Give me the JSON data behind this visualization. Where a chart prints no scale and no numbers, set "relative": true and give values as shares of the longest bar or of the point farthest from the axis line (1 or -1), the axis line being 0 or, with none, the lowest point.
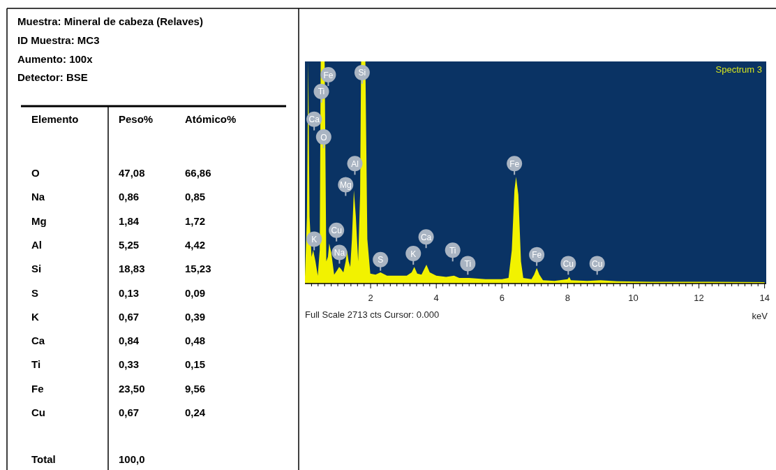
{
  "chart_data": [
    {
      "type": "other",
      "title": "Muestra: Mineral de cabeza (Relaves)",
      "xlabel": "Elemento",
      "annotations": [
        "ID Muestra: MC3",
        "Aumento: 100x",
        "Detector: BSE",
        "Total",
        "100,0"
      ],
      "categories": [
        "O",
        "Na",
        "Mg",
        "Al",
        "Si",
        "S",
        "K",
        "Ca",
        "Ti",
        "Fe",
        "Cu"
      ],
      "series": [
        {
          "name": "Peso%",
          "values": [
            47.08,
            0.86,
            1.84,
            5.25,
            18.83,
            0.13,
            0.67,
            0.84,
            0.33,
            23.5,
            0.67
          ],
          "value_labels": [
            "47,08",
            "0,86",
            "1,84",
            "5,25",
            "18,83",
            "0,13",
            "0,67",
            "0,84",
            "0,33",
            "23,50",
            "0,67"
          ]
        },
        {
          "name": "Atómico%",
          "values": [
            66.86,
            0.85,
            1.72,
            4.42,
            15.23,
            0.09,
            0.39,
            0.48,
            0.15,
            9.56,
            0.24
          ],
          "value_labels": [
            "66,86",
            "0,85",
            "1,72",
            "4,42",
            "15,23",
            "0,09",
            "0,39",
            "0,48",
            "0,15",
            "9,56",
            "0,24"
          ]
        }
      ]
    },
    {
      "type": "area",
      "title": "Spectrum 3",
      "xlabel": "keV",
      "relative": true,
      "grid": false,
      "xlim": [
        0,
        14.05
      ],
      "xticks": [
        {
          "value": 0.2,
          "label": null
        },
        {
          "value": 0.4,
          "label": null
        },
        {
          "value": 0.6,
          "label": null
        },
        {
          "value": 0.8,
          "label": null
        },
        {
          "value": 1,
          "label": null
        },
        {
          "value": 1.2,
          "label": null
        },
        {
          "value": 1.4,
          "label": null
        },
        {
          "value": 1.6,
          "label": null
        },
        {
          "value": 1.8,
          "label": null
        },
        2,
        {
          "value": 2.2,
          "label": null
        },
        {
          "value": 2.4,
          "label": null
        },
        {
          "value": 2.6,
          "label": null
        },
        {
          "value": 2.8,
          "label": null
        },
        {
          "value": 3,
          "label": null
        },
        {
          "value": 3.2,
          "label": null
        },
        {
          "value": 3.4,
          "label": null
        },
        {
          "value": 3.6,
          "label": null
        },
        {
          "value": 3.8,
          "label": null
        },
        4,
        {
          "value": 4.2,
          "label": null
        },
        {
          "value": 4.4,
          "label": null
        },
        {
          "value": 4.6,
          "label": null
        },
        {
          "value": 4.8,
          "label": null
        },
        {
          "value": 5,
          "label": null
        },
        {
          "value": 5.2,
          "label": null
        },
        {
          "value": 5.4,
          "label": null
        },
        {
          "value": 5.6,
          "label": null
        },
        {
          "value": 5.8,
          "label": null
        },
        6,
        {
          "value": 6.2,
          "label": null
        },
        {
          "value": 6.4,
          "label": null
        },
        {
          "value": 6.6,
          "label": null
        },
        {
          "value": 6.8,
          "label": null
        },
        {
          "value": 7,
          "label": null
        },
        {
          "value": 7.2,
          "label": null
        },
        {
          "value": 7.4,
          "label": null
        },
        {
          "value": 7.6,
          "label": null
        },
        {
          "value": 7.8,
          "label": null
        },
        8,
        {
          "value": 8.2,
          "label": null
        },
        {
          "value": 8.4,
          "label": null
        },
        {
          "value": 8.6,
          "label": null
        },
        {
          "value": 8.8,
          "label": null
        },
        {
          "value": 9,
          "label": null
        },
        {
          "value": 9.2,
          "label": null
        },
        {
          "value": 9.4,
          "label": null
        },
        {
          "value": 9.6,
          "label": null
        },
        {
          "value": 9.8,
          "label": null
        },
        10,
        {
          "value": 10.2,
          "label": null
        },
        {
          "value": 10.4,
          "label": null
        },
        {
          "value": 10.6,
          "label": null
        },
        {
          "value": 10.8,
          "label": null
        },
        {
          "value": 11,
          "label": null
        },
        {
          "value": 11.2,
          "label": null
        },
        {
          "value": 11.4,
          "label": null
        },
        {
          "value": 11.6,
          "label": null
        },
        {
          "value": 11.8,
          "label": null
        },
        12,
        {
          "value": 12.2,
          "label": null
        },
        {
          "value": 12.4,
          "label": null
        },
        {
          "value": 12.6,
          "label": null
        },
        {
          "value": 12.8,
          "label": null
        },
        {
          "value": 13,
          "label": null
        },
        {
          "value": 13.2,
          "label": null
        },
        {
          "value": 13.4,
          "label": null
        },
        {
          "value": 13.6,
          "label": null
        },
        {
          "value": 13.8,
          "label": null
        },
        14
      ],
      "series": [
        {
          "color": "#f2f200",
          "x": [
            0,
            0.06,
            0.1,
            0.14,
            0.2,
            0.25,
            0.32,
            0.39,
            0.45,
            0.48,
            0.6,
            0.65,
            0.7,
            0.74,
            0.8,
            0.89,
            0.98,
            1.04,
            1.1,
            1.17,
            1.24,
            1.28,
            1.33,
            1.38,
            1.43,
            1.49,
            1.55,
            1.62,
            1.68,
            1.71,
            1.84,
            1.9,
            1.99,
            2.15,
            2.3,
            2.5,
            2.8,
            3.1,
            3.25,
            3.33,
            3.42,
            3.55,
            3.7,
            3.8,
            4,
            4.3,
            4.54,
            4.7,
            5,
            5.5,
            6,
            6.2,
            6.3,
            6.38,
            6.43,
            6.5,
            6.58,
            6.65,
            6.9,
            6.98,
            7.06,
            7.14,
            7.25,
            7.6,
            8,
            8.05,
            8.1,
            8.6,
            9,
            9.5,
            10.5,
            12,
            14
          ],
          "values": [
            0.03,
            0.3,
            1,
            0.3,
            0.12,
            0.15,
            0.1,
            0.035,
            0.15,
            1,
            1,
            0.1,
            0.12,
            0.18,
            0.14,
            0.04,
            0.06,
            0.075,
            0.065,
            0.05,
            0.1,
            0.15,
            0.1,
            0.075,
            0.2,
            0.42,
            0.3,
            0.1,
            0.4,
            1,
            1,
            0.2,
            0.045,
            0.04,
            0.05,
            0.035,
            0.035,
            0.035,
            0.05,
            0.075,
            0.045,
            0.04,
            0.085,
            0.05,
            0.035,
            0.03,
            0.035,
            0.025,
            0.025,
            0.02,
            0.02,
            0.025,
            0.15,
            0.42,
            0.48,
            0.4,
            0.1,
            0.025,
            0.02,
            0.04,
            0.07,
            0.04,
            0.015,
            0.012,
            0.02,
            0.03,
            0.015,
            0.012,
            0.015,
            0.01,
            0.008,
            0.008,
            0.006
          ]
        }
      ],
      "annotations": [
        {
          "text": "Fe",
          "x": 0.71,
          "y": 0.94
        },
        {
          "text": "Ti",
          "x": 0.5,
          "y": 0.865
        },
        {
          "text": "Ca",
          "x": 0.28,
          "y": 0.74
        },
        {
          "text": "O",
          "x": 0.57,
          "y": 0.66
        },
        {
          "text": "Si",
          "x": 1.74,
          "y": 0.95
        },
        {
          "text": "Al",
          "x": 1.52,
          "y": 0.54
        },
        {
          "text": "Mg",
          "x": 1.24,
          "y": 0.445
        },
        {
          "text": "K",
          "x": 0.28,
          "y": 0.2
        },
        {
          "text": "Cu",
          "x": 0.96,
          "y": 0.24
        },
        {
          "text": "Na",
          "x": 1.05,
          "y": 0.14
        },
        {
          "text": "S",
          "x": 2.3,
          "y": 0.108
        },
        {
          "text": "K",
          "x": 3.3,
          "y": 0.135
        },
        {
          "text": "Ca",
          "x": 3.69,
          "y": 0.21
        },
        {
          "text": "Ti",
          "x": 4.5,
          "y": 0.15
        },
        {
          "text": "Ti",
          "x": 4.96,
          "y": 0.09
        },
        {
          "text": "Fe",
          "x": 6.38,
          "y": 0.54
        },
        {
          "text": "Fe",
          "x": 7.06,
          "y": 0.13
        },
        {
          "text": "Cu",
          "x": 8.02,
          "y": 0.09
        },
        {
          "text": "Cu",
          "x": 8.9,
          "y": 0.09
        },
        "Full Scale 2713 cts Cursor: 0.000"
      ]
    }
  ]
}
